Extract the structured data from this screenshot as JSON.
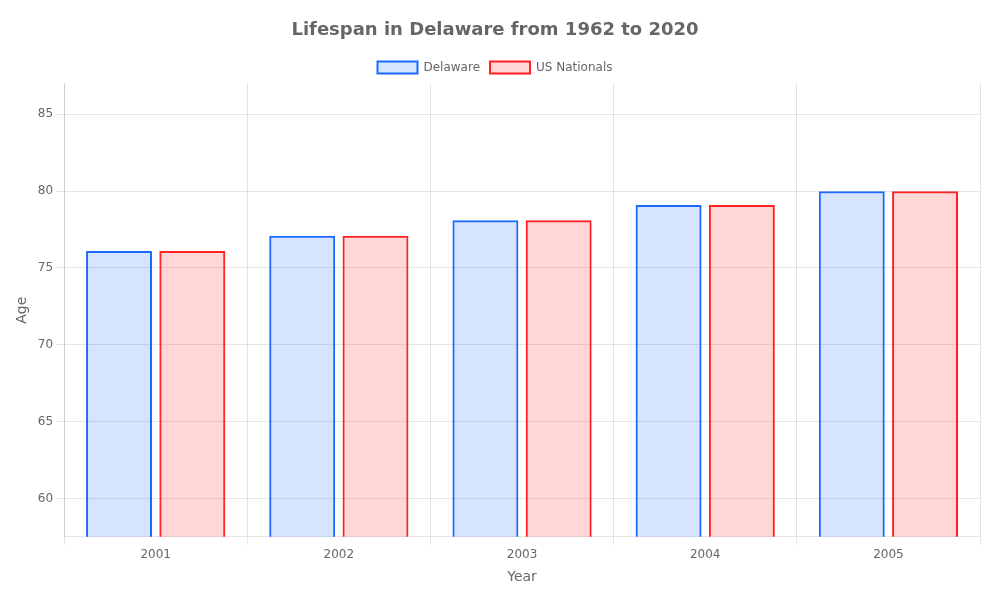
{
  "chart_data": {
    "type": "bar",
    "title": "Lifespan in Delaware from 1962 to 2020",
    "x_label": "Year",
    "y_label": "Age",
    "categories": [
      "2001",
      "2002",
      "2003",
      "2004",
      "2005"
    ],
    "series": [
      {
        "name": "Delaware",
        "color": "#1a6aff",
        "values": [
          76.1,
          77.1,
          78.1,
          79.1,
          80.0
        ]
      },
      {
        "name": "US Nationals",
        "color": "#ff2222",
        "values": [
          76.1,
          77.1,
          78.1,
          79.1,
          80.0
        ]
      }
    ],
    "ylim": [
      57.5,
      87
    ],
    "yticks": [
      60,
      65,
      70,
      75,
      80,
      85
    ],
    "grid": true,
    "legend": "top"
  }
}
